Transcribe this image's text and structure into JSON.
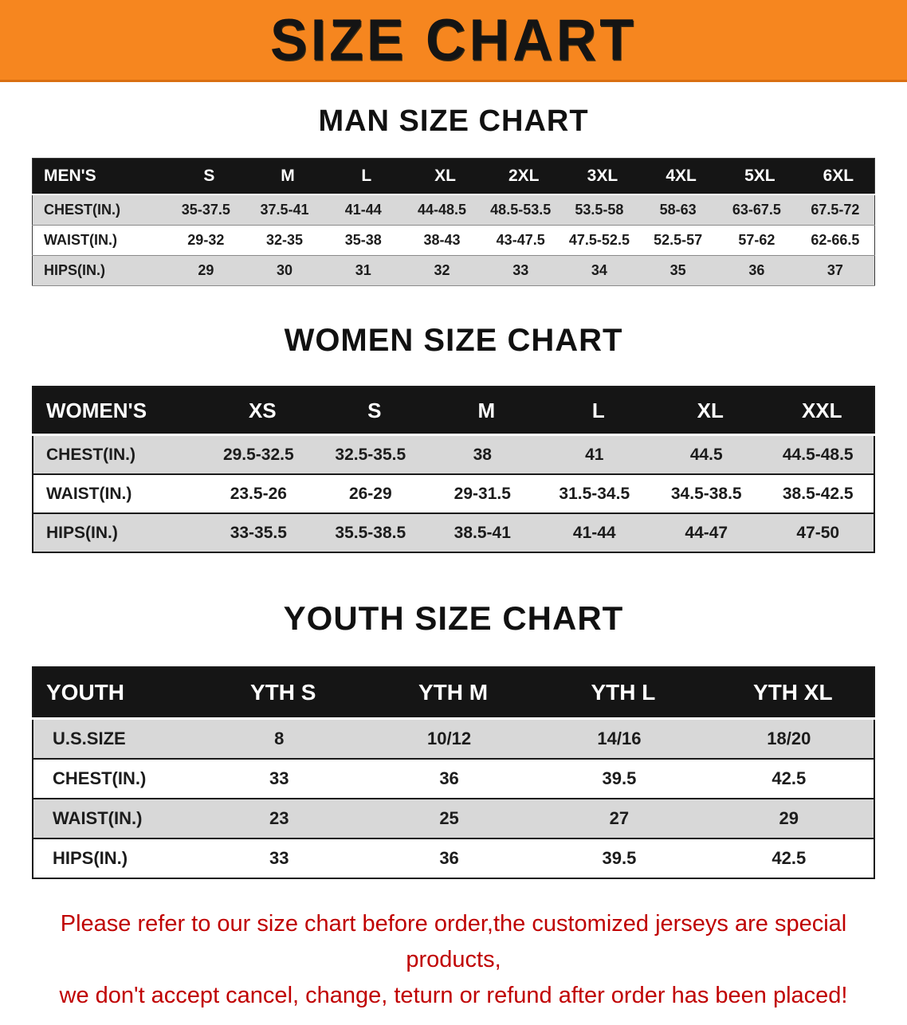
{
  "banner": {
    "title": "SIZE CHART",
    "bg_color": "#f6861f",
    "text_color": "#141414"
  },
  "man": {
    "heading": "MAN SIZE CHART",
    "table": {
      "header": [
        "MEN'S",
        "S",
        "M",
        "L",
        "XL",
        "2XL",
        "3XL",
        "4XL",
        "5XL",
        "6XL"
      ],
      "rows": [
        [
          "CHEST(IN.)",
          "35-37.5",
          "37.5-41",
          "41-44",
          "44-48.5",
          "48.5-53.5",
          "53.5-58",
          "58-63",
          "63-67.5",
          "67.5-72"
        ],
        [
          "WAIST(IN.)",
          "29-32",
          "32-35",
          "35-38",
          "38-43",
          "43-47.5",
          "47.5-52.5",
          "52.5-57",
          "57-62",
          "62-66.5"
        ],
        [
          "HIPS(IN.)",
          "29",
          "30",
          "31",
          "32",
          "33",
          "34",
          "35",
          "36",
          "37"
        ]
      ]
    }
  },
  "women": {
    "heading": "WOMEN SIZE CHART",
    "table": {
      "header": [
        "WOMEN'S",
        "XS",
        "S",
        "M",
        "L",
        "XL",
        "XXL"
      ],
      "rows": [
        [
          "CHEST(IN.)",
          "29.5-32.5",
          "32.5-35.5",
          "38",
          "41",
          "44.5",
          "44.5-48.5"
        ],
        [
          "WAIST(IN.)",
          "23.5-26",
          "26-29",
          "29-31.5",
          "31.5-34.5",
          "34.5-38.5",
          "38.5-42.5"
        ],
        [
          "HIPS(IN.)",
          "33-35.5",
          "35.5-38.5",
          "38.5-41",
          "41-44",
          "44-47",
          "47-50"
        ]
      ]
    }
  },
  "youth": {
    "heading": "YOUTH SIZE CHART",
    "table": {
      "header": [
        "YOUTH",
        "YTH S",
        "YTH M",
        "YTH L",
        "YTH XL"
      ],
      "rows": [
        [
          "U.S.SIZE",
          "8",
          "10/12",
          "14/16",
          "18/20"
        ],
        [
          "CHEST(IN.)",
          "33",
          "36",
          "39.5",
          "42.5"
        ],
        [
          "WAIST(IN.)",
          "23",
          "25",
          "27",
          "29"
        ],
        [
          "HIPS(IN.)",
          "33",
          "36",
          "39.5",
          "42.5"
        ]
      ]
    }
  },
  "footer": {
    "line1": "Please refer to our size chart before order,the customized jerseys are special products,",
    "line2": "we don't accept cancel, change, teturn or refund after order has been placed!",
    "text_color": "#c00000"
  }
}
